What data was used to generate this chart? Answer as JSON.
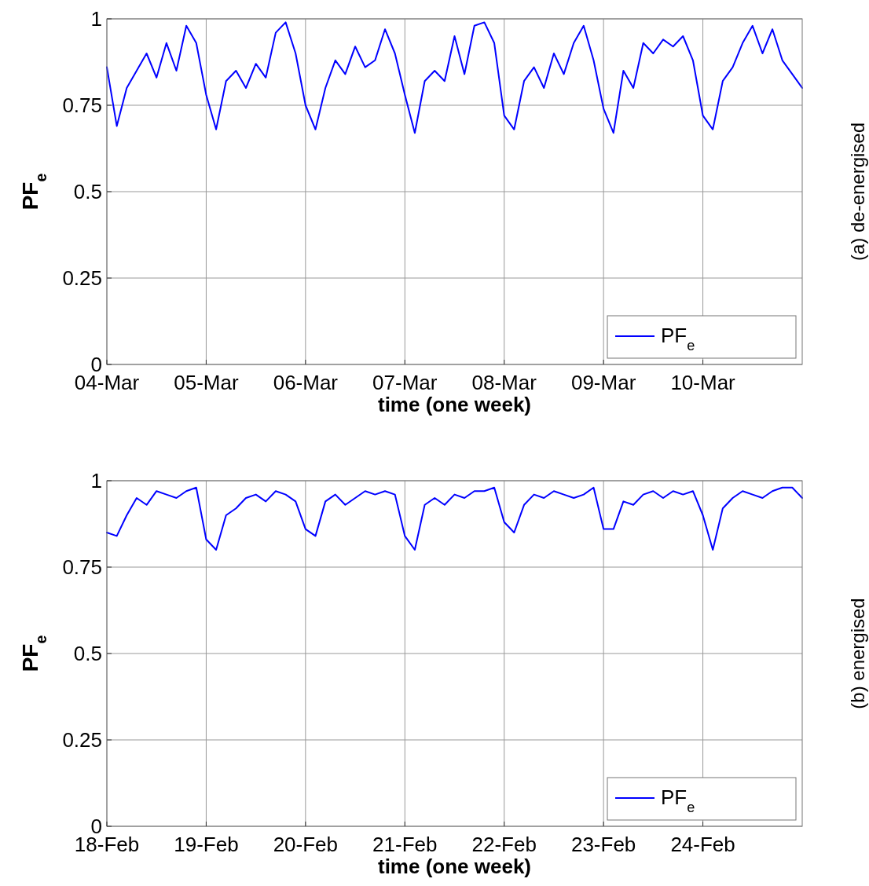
{
  "chart_data": [
    {
      "type": "line",
      "xlabel": "time (one week)",
      "ylabel": "PF$_{e}$",
      "annotations": [
        "(a) de-energised"
      ],
      "ylim": [
        0,
        1
      ],
      "categories": [
        "04-Mar",
        null,
        null,
        null,
        null,
        null,
        null,
        null,
        null,
        null,
        "05-Mar",
        null,
        null,
        null,
        null,
        null,
        null,
        null,
        null,
        null,
        "06-Mar",
        null,
        null,
        null,
        null,
        null,
        null,
        null,
        null,
        null,
        "07-Mar",
        null,
        null,
        null,
        null,
        null,
        null,
        null,
        null,
        null,
        "08-Mar",
        null,
        null,
        null,
        null,
        null,
        null,
        null,
        null,
        null,
        "09-Mar",
        null,
        null,
        null,
        null,
        null,
        null,
        null,
        null,
        null,
        "10-Mar",
        null,
        null,
        null,
        null,
        null,
        null,
        null,
        null,
        null,
        null
      ],
      "yticks": [
        0,
        0.25,
        0.5,
        0.75,
        1
      ],
      "grid": true,
      "legend": "bottom right",
      "line_style": "solid",
      "marker": "none",
      "series": [
        {
          "name": "PF$_{e}$",
          "color": "#0000ff",
          "values": [
            0.86,
            0.69,
            0.8,
            0.85,
            0.9,
            0.83,
            0.93,
            0.85,
            0.98,
            0.93,
            0.78,
            0.68,
            0.82,
            0.85,
            0.8,
            0.87,
            0.83,
            0.96,
            0.99,
            0.9,
            0.75,
            0.68,
            0.8,
            0.88,
            0.84,
            0.92,
            0.86,
            0.88,
            0.97,
            0.9,
            0.78,
            0.67,
            0.82,
            0.85,
            0.82,
            0.95,
            0.84,
            0.98,
            0.99,
            0.93,
            0.72,
            0.68,
            0.82,
            0.86,
            0.8,
            0.9,
            0.84,
            0.93,
            0.98,
            0.88,
            0.74,
            0.67,
            0.85,
            0.8,
            0.93,
            0.9,
            0.94,
            0.92,
            0.95,
            0.88,
            0.72,
            0.68,
            0.82,
            0.86,
            0.93,
            0.98,
            0.9,
            0.97,
            0.88,
            0.84,
            0.8
          ]
        }
      ]
    },
    {
      "type": "line",
      "xlabel": "time (one week)",
      "ylabel": "PF$_{e}$",
      "annotations": [
        "(b) energised"
      ],
      "ylim": [
        0,
        1
      ],
      "categories": [
        "18-Feb",
        null,
        null,
        null,
        null,
        null,
        null,
        null,
        null,
        null,
        "19-Feb",
        null,
        null,
        null,
        null,
        null,
        null,
        null,
        null,
        null,
        "20-Feb",
        null,
        null,
        null,
        null,
        null,
        null,
        null,
        null,
        null,
        "21-Feb",
        null,
        null,
        null,
        null,
        null,
        null,
        null,
        null,
        null,
        "22-Feb",
        null,
        null,
        null,
        null,
        null,
        null,
        null,
        null,
        null,
        "23-Feb",
        null,
        null,
        null,
        null,
        null,
        null,
        null,
        null,
        null,
        "24-Feb",
        null,
        null,
        null,
        null,
        null,
        null,
        null,
        null,
        null,
        null
      ],
      "yticks": [
        0,
        0.25,
        0.5,
        0.75,
        1
      ],
      "grid": true,
      "legend": "bottom right",
      "line_style": "solid",
      "marker": "none",
      "series": [
        {
          "name": "PF$_{e}$",
          "color": "#0000ff",
          "values": [
            0.85,
            0.84,
            0.9,
            0.95,
            0.93,
            0.97,
            0.96,
            0.95,
            0.97,
            0.98,
            0.83,
            0.8,
            0.9,
            0.92,
            0.95,
            0.96,
            0.94,
            0.97,
            0.96,
            0.94,
            0.86,
            0.84,
            0.94,
            0.96,
            0.93,
            0.95,
            0.97,
            0.96,
            0.97,
            0.96,
            0.84,
            0.8,
            0.93,
            0.95,
            0.93,
            0.96,
            0.95,
            0.97,
            0.97,
            0.98,
            0.88,
            0.85,
            0.93,
            0.96,
            0.95,
            0.97,
            0.96,
            0.95,
            0.96,
            0.98,
            0.86,
            0.86,
            0.94,
            0.93,
            0.96,
            0.97,
            0.95,
            0.97,
            0.96,
            0.97,
            0.9,
            0.8,
            0.92,
            0.95,
            0.97,
            0.96,
            0.95,
            0.97,
            0.98,
            0.98,
            0.95
          ]
        }
      ]
    }
  ]
}
